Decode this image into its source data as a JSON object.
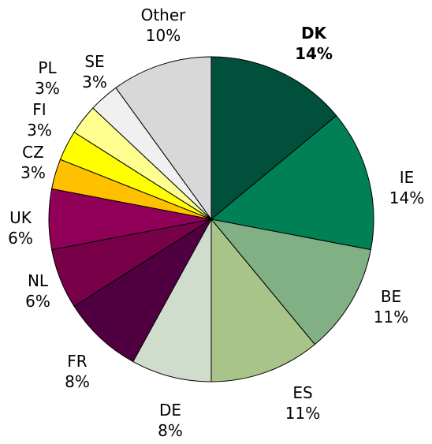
{
  "chart_data": {
    "type": "pie",
    "start_angle_deg": 0,
    "direction": "clockwise",
    "slices": [
      {
        "label": "DK",
        "value": 14,
        "value_text": "14%",
        "color": "#00503c",
        "bold": true
      },
      {
        "label": "IE",
        "value": 14,
        "value_text": "14%",
        "color": "#008054",
        "bold": false
      },
      {
        "label": "BE",
        "value": 11,
        "value_text": "11%",
        "color": "#80b084",
        "bold": false
      },
      {
        "label": "ES",
        "value": 11,
        "value_text": "11%",
        "color": "#a8c488",
        "bold": false
      },
      {
        "label": "DE",
        "value": 8,
        "value_text": "8%",
        "color": "#d0dccc",
        "bold": false
      },
      {
        "label": "FR",
        "value": 8,
        "value_text": "8%",
        "color": "#500040",
        "bold": false
      },
      {
        "label": "NL",
        "value": 6,
        "value_text": "6%",
        "color": "#780048",
        "bold": false
      },
      {
        "label": "UK",
        "value": 6,
        "value_text": "6%",
        "color": "#900058",
        "bold": false
      },
      {
        "label": "CZ",
        "value": 3,
        "value_text": "3%",
        "color": "#ffc000",
        "bold": false
      },
      {
        "label": "FI",
        "value": 3,
        "value_text": "3%",
        "color": "#ffff00",
        "bold": false
      },
      {
        "label": "PL",
        "value": 3,
        "value_text": "3%",
        "color": "#ffff90",
        "bold": false
      },
      {
        "label": "SE",
        "value": 3,
        "value_text": "3%",
        "color": "#f0f0f0",
        "bold": false
      },
      {
        "label": "Other",
        "value": 10,
        "value_text": "10%",
        "color": "#d8d8d8",
        "bold": false
      }
    ]
  }
}
